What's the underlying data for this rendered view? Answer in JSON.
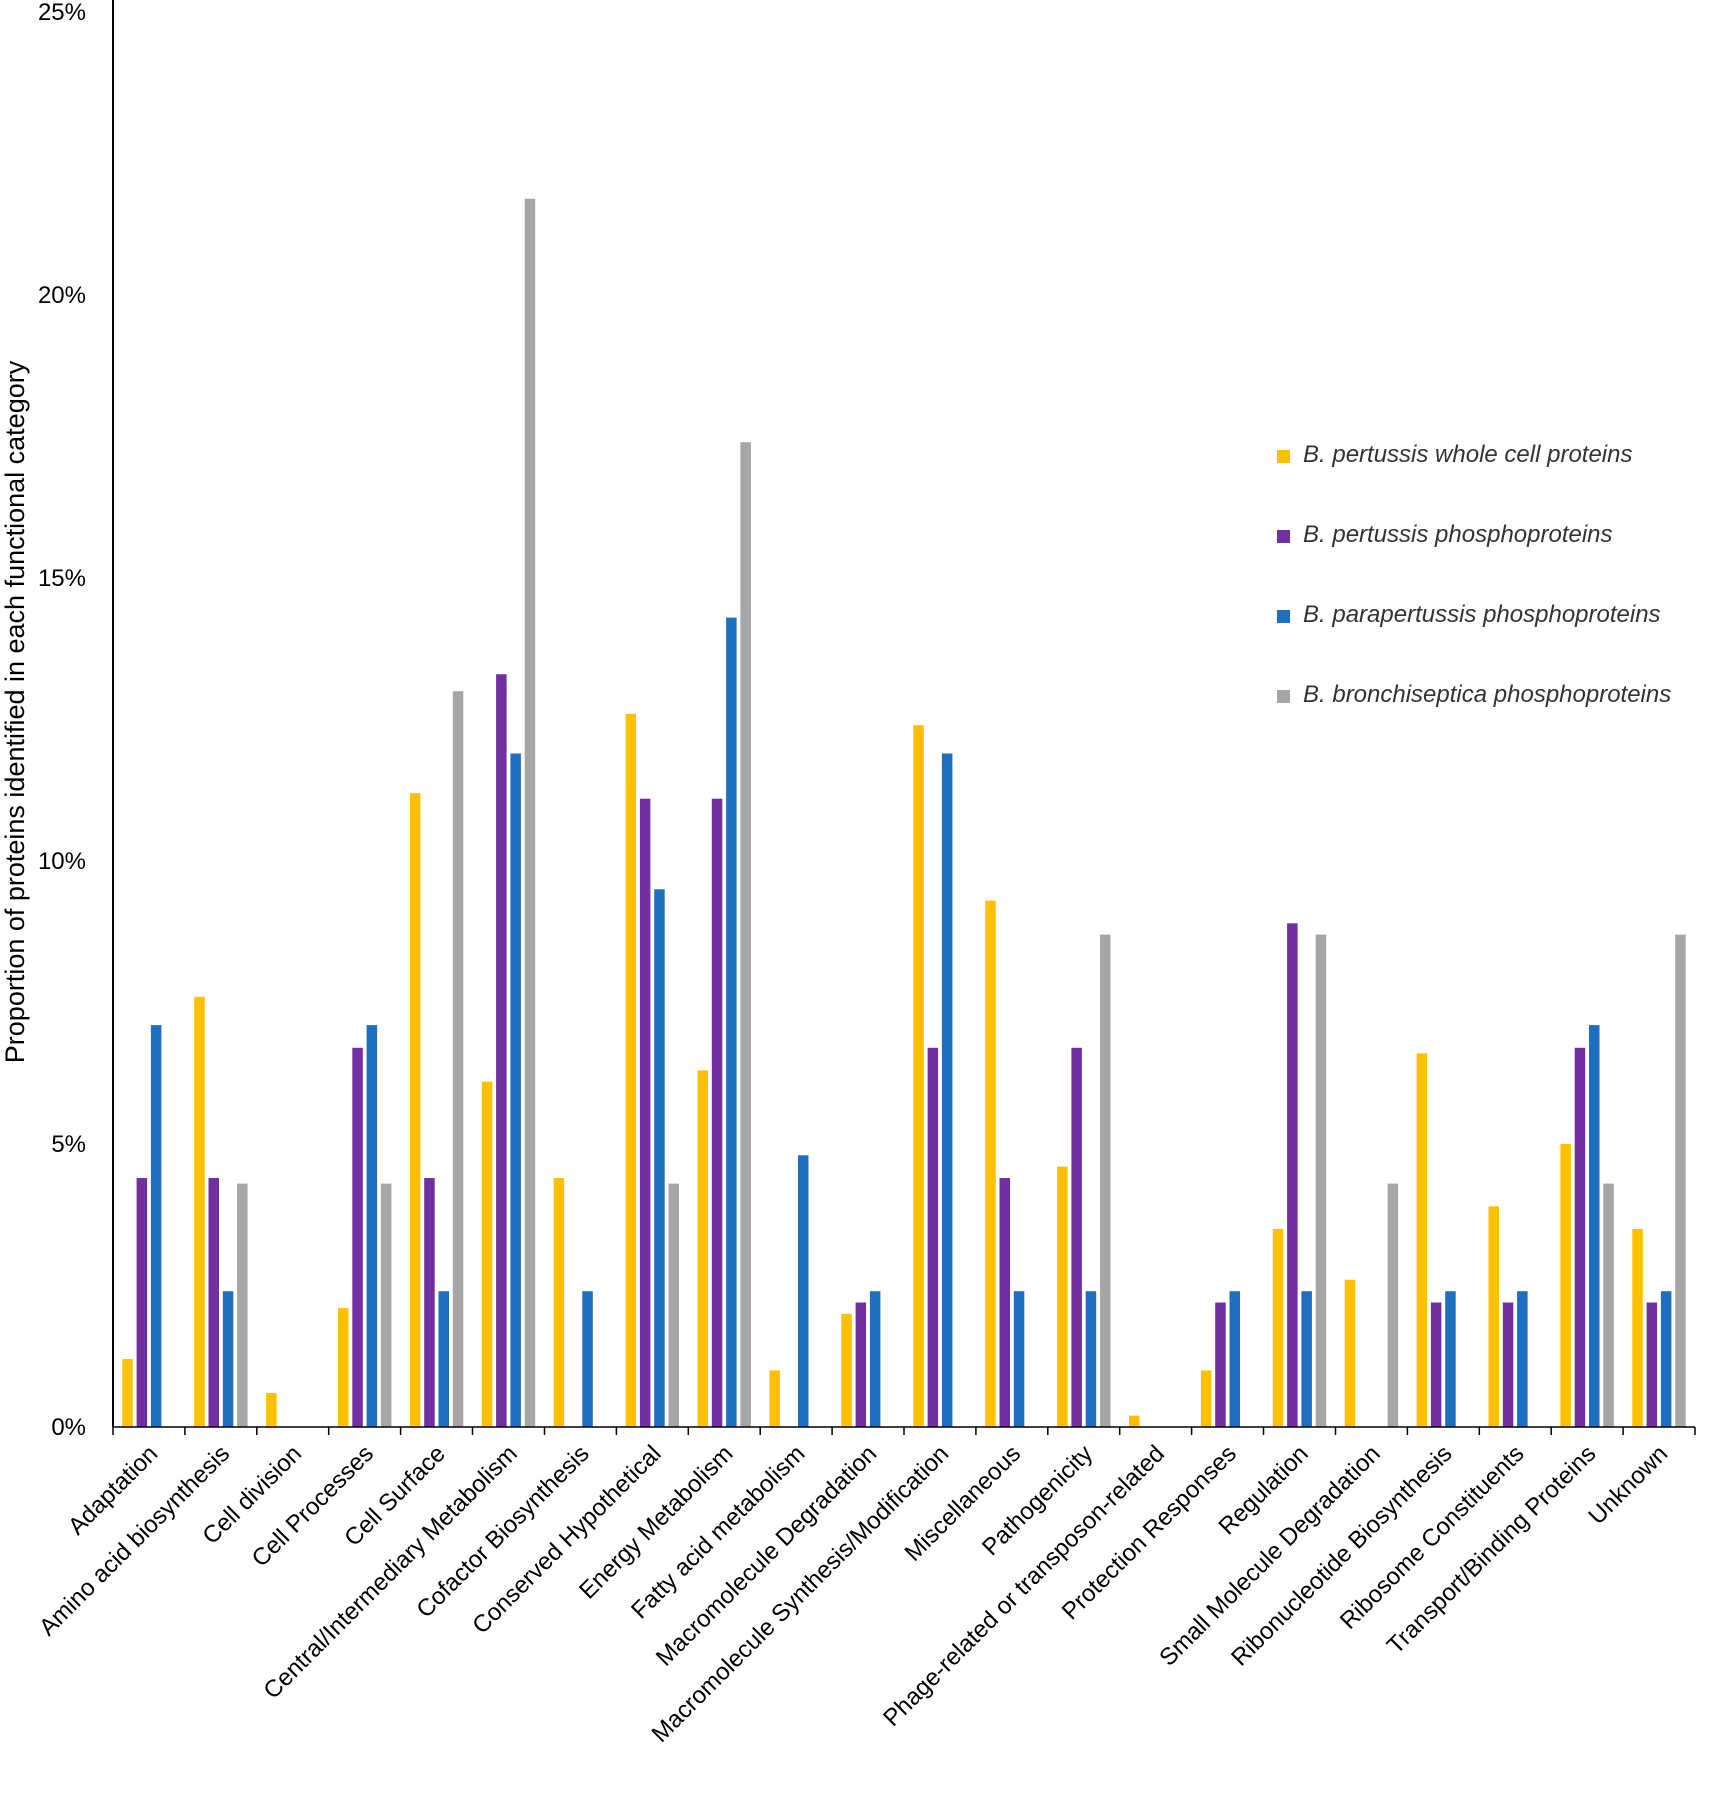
{
  "chart_data": {
    "type": "bar",
    "title": "",
    "xlabel": "",
    "ylabel": "Proportion of proteins identified in each functional category",
    "ylim": [
      0,
      25
    ],
    "yticks": [
      0,
      5,
      10,
      15,
      20,
      25
    ],
    "ytick_labels": [
      "0%",
      "5%",
      "10%",
      "15%",
      "20%",
      "25%"
    ],
    "grid": false,
    "legend_position": "right",
    "categories": [
      "Adaptation",
      "Amino acid biosynthesis",
      "Cell division",
      "Cell Processes",
      "Cell Surface",
      "Central/Intermediary Metabolism",
      "Cofactor Biosynthesis",
      "Conserved Hypothetical",
      "Energy Metabolism",
      "Fatty acid metabolism",
      "Macromolecule Degradation",
      "Macromolecule Synthesis/Modification",
      "Miscellaneous",
      "Pathogenicity",
      "Phage-related or transposon-related",
      "Protection Responses",
      "Regulation",
      "Small Molecule Degradation",
      "Ribonucleotide Biosynthesis",
      "Ribosome Constituents",
      "Transport/Binding Proteins",
      "Unknown"
    ],
    "series": [
      {
        "name": "B. pertussis whole cell proteins",
        "color": "#FFC000",
        "values": [
          1.2,
          7.6,
          0.6,
          2.1,
          11.2,
          6.1,
          4.4,
          12.6,
          6.3,
          1.0,
          2.0,
          12.4,
          9.3,
          4.6,
          0.2,
          1.0,
          3.5,
          2.6,
          6.6,
          3.9,
          5.0,
          3.5
        ]
      },
      {
        "name": "B. pertussis phosphoproteins",
        "color": "#7030A0",
        "values": [
          4.4,
          4.4,
          0,
          6.7,
          4.4,
          13.3,
          0,
          11.1,
          11.1,
          0,
          2.2,
          6.7,
          4.4,
          6.7,
          0,
          2.2,
          8.9,
          0,
          2.2,
          2.2,
          6.7,
          2.2
        ]
      },
      {
        "name": "B. parapertussis phosphoproteins",
        "color": "#1F6FC0",
        "values": [
          7.1,
          2.4,
          0,
          7.1,
          2.4,
          11.9,
          2.4,
          9.5,
          14.3,
          4.8,
          2.4,
          11.9,
          2.4,
          2.4,
          0,
          2.4,
          2.4,
          0,
          2.4,
          2.4,
          7.1,
          2.4
        ]
      },
      {
        "name": "B. bronchiseptica phosphoproteins",
        "color": "#A6A6A6",
        "values": [
          0,
          4.3,
          0,
          4.3,
          13.0,
          21.7,
          0,
          4.3,
          17.4,
          0,
          0,
          0,
          0,
          8.7,
          0,
          0,
          8.7,
          4.3,
          0,
          0,
          4.3,
          8.7
        ]
      }
    ]
  }
}
